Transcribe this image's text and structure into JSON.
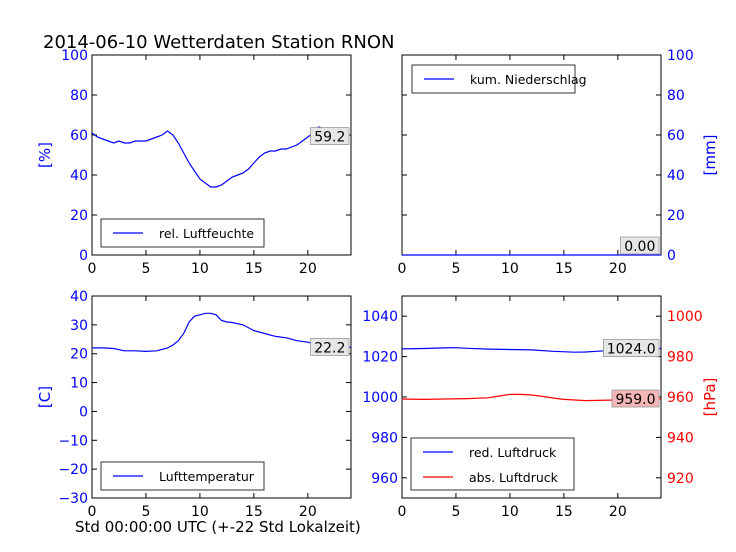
{
  "figure": {
    "title": "2014-06-10 Wetterdaten Station RNON",
    "xlabel": "Std 00:00:00 UTC (+-22 Std Lokalzeit)"
  },
  "colors": {
    "blue": "#0000ff",
    "red": "#ff0000",
    "value_box_red": "#f4b6b6",
    "value_box_gray": "#e6e6e6"
  },
  "chart_data": [
    {
      "id": "humidity",
      "type": "line",
      "ylabel": "[%]",
      "ylabel_color": "#0000ff",
      "xlim": [
        0,
        24
      ],
      "ylim": [
        0,
        100
      ],
      "xticks": [
        "0",
        "5",
        "10",
        "15",
        "20"
      ],
      "yticks": [
        "0",
        "20",
        "40",
        "60",
        "80",
        "100"
      ],
      "legend": [
        "rel. Luftfeuchte"
      ],
      "legend_position": "lower-left",
      "value_label": "59.2",
      "series": [
        {
          "name": "rel. Luftfeuchte",
          "color": "#0000ff",
          "x": [
            0,
            0.5,
            1,
            1.5,
            2,
            2.5,
            3,
            3.5,
            4,
            4.5,
            5,
            5.5,
            6,
            6.5,
            7,
            7.5,
            8,
            8.5,
            9,
            9.5,
            10,
            10.5,
            11,
            11.5,
            12,
            12.5,
            13,
            13.5,
            14,
            14.5,
            15,
            15.5,
            16,
            16.5,
            17,
            17.5,
            18,
            18.5,
            19,
            19.5,
            20,
            20.5,
            21,
            21.5,
            22,
            22.5,
            23,
            23.5
          ],
          "values": [
            61,
            59,
            58,
            57,
            56,
            57,
            56,
            56,
            57,
            57,
            57,
            58,
            59,
            60,
            62,
            60,
            56,
            51,
            46,
            42,
            38,
            36,
            34,
            34,
            35,
            37,
            39,
            40,
            41,
            43,
            46,
            49,
            51,
            52,
            52,
            53,
            53,
            54,
            55,
            57,
            59,
            61,
            64,
            63,
            62,
            61,
            59.5,
            59.2
          ]
        }
      ]
    },
    {
      "id": "precip",
      "type": "line",
      "ylabel": "[mm]",
      "ylabel_color": "#0000ff",
      "xlim": [
        0,
        24
      ],
      "ylim": [
        0,
        100
      ],
      "xticks": [
        "0",
        "5",
        "10",
        "15",
        "20"
      ],
      "yticks": [
        "0",
        "20",
        "40",
        "60",
        "80",
        "100"
      ],
      "legend": [
        "kum. Niederschlag"
      ],
      "legend_position": "upper-left",
      "value_label": "0.00",
      "series": [
        {
          "name": "kum. Niederschlag",
          "color": "#0000ff",
          "x": [
            0,
            24
          ],
          "values": [
            0,
            0
          ]
        }
      ]
    },
    {
      "id": "temperature",
      "type": "line",
      "ylabel": "[C]",
      "ylabel_color": "#0000ff",
      "xlim": [
        0,
        24
      ],
      "ylim": [
        -30,
        40
      ],
      "xticks": [
        "0",
        "5",
        "10",
        "15",
        "20"
      ],
      "yticks": [
        "−30",
        "−20",
        "−10",
        "0",
        "10",
        "20",
        "30",
        "40"
      ],
      "legend": [
        "Lufttemperatur"
      ],
      "legend_position": "lower-left",
      "value_label": "22.2",
      "series": [
        {
          "name": "Lufttemperatur",
          "color": "#0000ff",
          "x": [
            0,
            1,
            2,
            3,
            4,
            5,
            6,
            7,
            7.5,
            8,
            8.5,
            9,
            9.5,
            10,
            10.5,
            11,
            11.5,
            12,
            12.5,
            13,
            14,
            15,
            16,
            17,
            18,
            19,
            20,
            21,
            22,
            23,
            24
          ],
          "values": [
            22,
            22,
            21.8,
            21,
            21,
            20.8,
            21,
            22,
            23,
            24.5,
            27,
            31,
            33,
            33.5,
            34,
            34,
            33.5,
            31.5,
            31,
            30.8,
            30,
            28,
            27,
            26,
            25.5,
            24.5,
            24,
            23,
            22.5,
            22.2,
            22.2
          ]
        }
      ]
    },
    {
      "id": "pressure",
      "type": "line",
      "ylabel": "[hPa]",
      "ylabel_color": "#ff0000",
      "xlim": [
        0,
        24
      ],
      "ylim": [
        950,
        1050
      ],
      "ylim_right": [
        910,
        1010
      ],
      "xticks": [
        "0",
        "5",
        "10",
        "15",
        "20"
      ],
      "yticks": [
        "960",
        "980",
        "1000",
        "1020",
        "1040"
      ],
      "yticks_right": [
        "920",
        "940",
        "960",
        "980",
        "1000"
      ],
      "legend": [
        "red. Luftdruck",
        "abs. Luftdruck"
      ],
      "legend_position": "lower-left",
      "value_labels": [
        "1024.0",
        "959.0"
      ],
      "series": [
        {
          "name": "red. Luftdruck",
          "color": "#0000ff",
          "axis": "left",
          "x": [
            0,
            2,
            4,
            5,
            6,
            8,
            10,
            12,
            14,
            16,
            17,
            18,
            20,
            22,
            24
          ],
          "values": [
            1023.8,
            1024,
            1024.3,
            1024.4,
            1024.1,
            1023.7,
            1023.5,
            1023.3,
            1022.6,
            1022.2,
            1022.3,
            1022.6,
            1023.2,
            1023.8,
            1024
          ]
        },
        {
          "name": "abs. Luftdruck",
          "color": "#ff0000",
          "axis": "right",
          "x": [
            0,
            2,
            4,
            6,
            8,
            9,
            10,
            11,
            12,
            13,
            14,
            15,
            16,
            17,
            18,
            20,
            22,
            24
          ],
          "values": [
            959,
            958.8,
            959,
            959.2,
            959.6,
            960.5,
            961.3,
            961.3,
            961,
            960.3,
            959.5,
            958.8,
            958.5,
            958.2,
            958.3,
            958.5,
            958.8,
            959
          ]
        }
      ]
    }
  ]
}
